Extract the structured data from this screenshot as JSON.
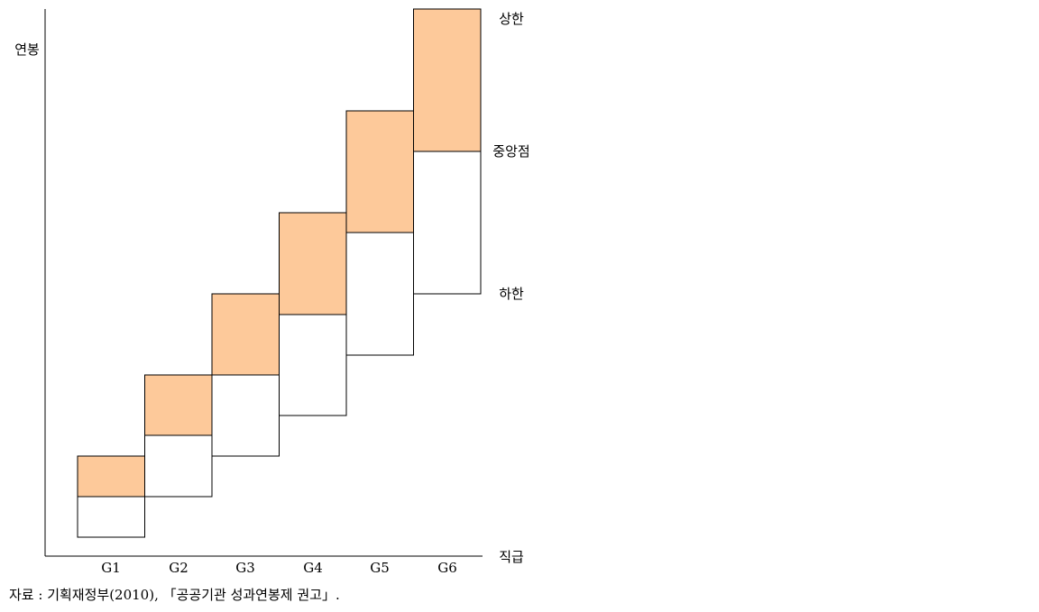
{
  "diagram": {
    "y_axis_label": "연봉",
    "x_axis_label": "직급",
    "grades": [
      "G1",
      "G2",
      "G3",
      "G4",
      "G5",
      "G6"
    ],
    "band_labels": {
      "upper": "상한",
      "middle": "중앙점",
      "lower": "하한"
    },
    "source": "자료 : 기획재정부(2010), 「공공기관 성과연봉제 권고」."
  }
}
